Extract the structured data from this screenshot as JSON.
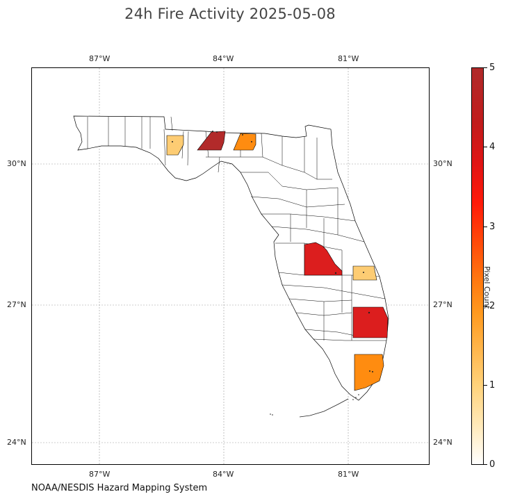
{
  "title": "24h Fire Activity 2025-05-08",
  "credit": "NOAA/NESDIS Hazard Mapping System",
  "map": {
    "longitude_labels": [
      "87°W",
      "84°W",
      "81°W"
    ],
    "latitude_labels": [
      "30°N",
      "27°N",
      "24°N"
    ],
    "colors": {
      "land_fill": "#ffffff",
      "county_border": "#000000",
      "gridline": "#999999"
    },
    "highlighted_counties": [
      {
        "name": "Walton County",
        "pixel_count": 1,
        "color": "#fdcc73"
      },
      {
        "name": "Leon County",
        "pixel_count": 5,
        "color": "#b22a2a"
      },
      {
        "name": "Madison County",
        "pixel_count": 2,
        "color": "#ff8c10"
      },
      {
        "name": "Polk County",
        "pixel_count": 4,
        "color": "#dc1e1e"
      },
      {
        "name": "Brevard (Indian River) County",
        "pixel_count": 1,
        "color": "#fdcc73"
      },
      {
        "name": "Palm Beach County",
        "pixel_count": 4,
        "color": "#dc1e1e"
      },
      {
        "name": "Miami-Dade County",
        "pixel_count": 2,
        "color": "#ff8c10"
      }
    ]
  },
  "colorbar": {
    "title": "Pixel Count",
    "tick_labels": [
      "0",
      "1",
      "2",
      "3",
      "4",
      "5"
    ],
    "range": [
      0,
      5
    ]
  }
}
